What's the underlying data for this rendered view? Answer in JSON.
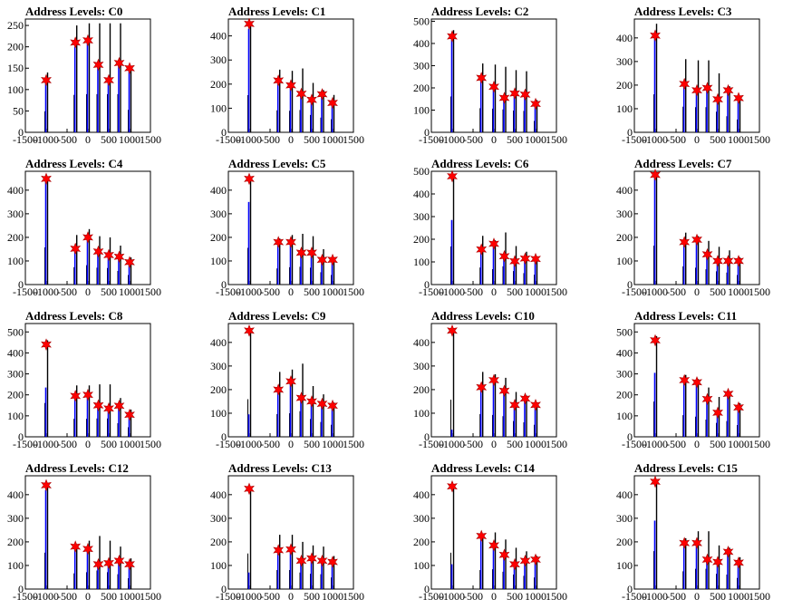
{
  "chart_data": [
    {
      "type": "histogram",
      "title": "Address Levels: C0",
      "xlim": [
        -1500,
        1500
      ],
      "ylim": [
        0,
        265
      ],
      "xticks": [
        -1500,
        -1000,
        -500,
        0,
        500,
        1000,
        1500
      ],
      "yticks": [
        0,
        50,
        100,
        150,
        200,
        250
      ],
      "x": [
        -1000,
        -300,
        0,
        250,
        500,
        750,
        1000
      ],
      "black_values": [
        140,
        250,
        255,
        255,
        255,
        255,
        150
      ],
      "blue_values": [
        120,
        200,
        210,
        150,
        120,
        160,
        145
      ],
      "markers": [
        122,
        210,
        215,
        158,
        122,
        162,
        150
      ]
    },
    {
      "type": "histogram",
      "title": "Address Levels: C1",
      "xlim": [
        -1500,
        1500
      ],
      "ylim": [
        0,
        470
      ],
      "xticks": [
        -1500,
        -1000,
        -500,
        0,
        500,
        1000,
        1500
      ],
      "yticks": [
        0,
        100,
        200,
        300,
        400
      ],
      "x": [
        -1000,
        -300,
        0,
        250,
        500,
        750,
        1000
      ],
      "black_values": [
        440,
        260,
        255,
        265,
        205,
        175,
        155
      ],
      "blue_values": [
        430,
        200,
        185,
        150,
        130,
        150,
        115
      ],
      "markers": [
        450,
        215,
        195,
        160,
        135,
        158,
        122
      ]
    },
    {
      "type": "histogram",
      "title": "Address Levels: C2",
      "xlim": [
        -1500,
        1500
      ],
      "ylim": [
        0,
        510
      ],
      "xticks": [
        -1500,
        -1000,
        -500,
        0,
        500,
        1000,
        1500
      ],
      "yticks": [
        0,
        100,
        200,
        300,
        400,
        500
      ],
      "x": [
        -1000,
        -300,
        0,
        250,
        500,
        750,
        1000
      ],
      "black_values": [
        460,
        310,
        305,
        295,
        280,
        275,
        145
      ],
      "blue_values": [
        420,
        240,
        195,
        150,
        165,
        160,
        115
      ],
      "markers": [
        432,
        245,
        205,
        155,
        175,
        170,
        128
      ]
    },
    {
      "type": "histogram",
      "title": "Address Levels: C3",
      "xlim": [
        -1500,
        1500
      ],
      "ylim": [
        0,
        480
      ],
      "xticks": [
        -1500,
        -1000,
        -500,
        0,
        500,
        1000,
        1500
      ],
      "yticks": [
        0,
        100,
        200,
        300,
        400
      ],
      "x": [
        -1000,
        -300,
        0,
        250,
        500,
        750,
        1000
      ],
      "black_values": [
        460,
        310,
        305,
        305,
        250,
        195,
        155
      ],
      "blue_values": [
        400,
        200,
        170,
        180,
        135,
        170,
        140
      ],
      "markers": [
        410,
        205,
        178,
        188,
        140,
        178,
        145
      ]
    },
    {
      "type": "histogram",
      "title": "Address Levels: C4",
      "xlim": [
        -1500,
        1500
      ],
      "ylim": [
        0,
        480
      ],
      "xticks": [
        -1500,
        -1000,
        -500,
        0,
        500,
        1000,
        1500
      ],
      "yticks": [
        0,
        100,
        200,
        300,
        400
      ],
      "x": [
        -1000,
        -300,
        0,
        250,
        500,
        750,
        1000
      ],
      "black_values": [
        450,
        210,
        235,
        205,
        200,
        165,
        115
      ],
      "blue_values": [
        440,
        150,
        195,
        135,
        120,
        115,
        90
      ],
      "markers": [
        448,
        152,
        200,
        140,
        125,
        118,
        95
      ]
    },
    {
      "type": "histogram",
      "title": "Address Levels: C5",
      "xlim": [
        -1500,
        1500
      ],
      "ylim": [
        0,
        480
      ],
      "xticks": [
        -1500,
        -1000,
        -500,
        0,
        500,
        1000,
        1500
      ],
      "yticks": [
        0,
        100,
        200,
        300,
        400
      ],
      "x": [
        -1000,
        -300,
        0,
        250,
        500,
        750,
        1000
      ],
      "black_values": [
        445,
        195,
        210,
        215,
        205,
        150,
        115
      ],
      "blue_values": [
        350,
        175,
        175,
        130,
        130,
        105,
        100
      ],
      "markers": [
        448,
        180,
        180,
        135,
        135,
        105,
        105
      ]
    },
    {
      "type": "histogram",
      "title": "Address Levels: C6",
      "xlim": [
        -1500,
        1500
      ],
      "ylim": [
        0,
        500
      ],
      "xticks": [
        -1500,
        -1000,
        -500,
        0,
        500,
        1000,
        1500
      ],
      "yticks": [
        0,
        100,
        200,
        300,
        400,
        500
      ],
      "x": [
        -1000,
        -300,
        0,
        250,
        500,
        750,
        1000
      ],
      "black_values": [
        480,
        215,
        195,
        230,
        170,
        145,
        125
      ],
      "blue_values": [
        285,
        150,
        175,
        125,
        100,
        110,
        110
      ],
      "markers": [
        478,
        155,
        180,
        125,
        103,
        115,
        113
      ]
    },
    {
      "type": "histogram",
      "title": "Address Levels: C7",
      "xlim": [
        -1500,
        1500
      ],
      "ylim": [
        0,
        480
      ],
      "xticks": [
        -1500,
        -1000,
        -500,
        0,
        500,
        1000,
        1500
      ],
      "yticks": [
        0,
        100,
        200,
        300,
        400
      ],
      "x": [
        -1000,
        -300,
        0,
        250,
        500,
        750,
        1000
      ],
      "black_values": [
        470,
        220,
        205,
        185,
        160,
        145,
        115
      ],
      "blue_values": [
        455,
        180,
        185,
        125,
        100,
        100,
        100
      ],
      "markers": [
        465,
        180,
        190,
        128,
        100,
        100,
        100
      ]
    },
    {
      "type": "histogram",
      "title": "Address Levels: C8",
      "xlim": [
        -1500,
        1500
      ],
      "ylim": [
        0,
        540
      ],
      "xticks": [
        -1500,
        -1000,
        -500,
        0,
        500,
        1000,
        1500
      ],
      "yticks": [
        0,
        100,
        200,
        300,
        400,
        500
      ],
      "x": [
        -1000,
        -300,
        0,
        250,
        500,
        750,
        1000
      ],
      "black_values": [
        460,
        245,
        245,
        250,
        250,
        185,
        130
      ],
      "blue_values": [
        235,
        190,
        195,
        150,
        130,
        145,
        105
      ],
      "markers": [
        440,
        195,
        200,
        150,
        135,
        148,
        105
      ]
    },
    {
      "type": "histogram",
      "title": "Address Levels: C9",
      "xlim": [
        -1500,
        1500
      ],
      "ylim": [
        0,
        480
      ],
      "xticks": [
        -1500,
        -1000,
        -500,
        0,
        500,
        1000,
        1500
      ],
      "yticks": [
        0,
        100,
        200,
        300,
        400
      ],
      "x": [
        -1000,
        -300,
        0,
        250,
        500,
        750,
        1000
      ],
      "black_values": [
        455,
        275,
        285,
        310,
        215,
        180,
        145
      ],
      "blue_values": [
        95,
        195,
        230,
        160,
        150,
        135,
        125
      ],
      "markers": [
        450,
        200,
        235,
        165,
        150,
        140,
        132
      ]
    },
    {
      "type": "histogram",
      "title": "Address Levels: C10",
      "xlim": [
        -1500,
        1500
      ],
      "ylim": [
        0,
        480
      ],
      "xticks": [
        -1500,
        -1000,
        -500,
        0,
        500,
        1000,
        1500
      ],
      "yticks": [
        0,
        100,
        200,
        300,
        400
      ],
      "x": [
        -1000,
        -300,
        0,
        250,
        500,
        750,
        1000
      ],
      "black_values": [
        450,
        275,
        265,
        250,
        190,
        175,
        145
      ],
      "blue_values": [
        30,
        205,
        235,
        190,
        130,
        155,
        130
      ],
      "markers": [
        450,
        210,
        240,
        195,
        135,
        162,
        135
      ]
    },
    {
      "type": "histogram",
      "title": "Address Levels: C11",
      "xlim": [
        -1500,
        1500
      ],
      "ylim": [
        0,
        540
      ],
      "xticks": [
        -1500,
        -1000,
        -500,
        0,
        500,
        1000,
        1500
      ],
      "yticks": [
        0,
        100,
        200,
        300,
        400,
        500
      ],
      "x": [
        -1000,
        -300,
        0,
        250,
        500,
        750,
        1000
      ],
      "black_values": [
        480,
        295,
        275,
        235,
        190,
        215,
        160
      ],
      "blue_values": [
        305,
        265,
        250,
        175,
        110,
        200,
        135
      ],
      "markers": [
        460,
        270,
        260,
        180,
        115,
        205,
        140
      ]
    },
    {
      "type": "histogram",
      "title": "Address Levels: C12",
      "xlim": [
        -1500,
        1500
      ],
      "ylim": [
        0,
        480
      ],
      "xticks": [
        -1500,
        -1000,
        -500,
        0,
        500,
        1000,
        1500
      ],
      "yticks": [
        0,
        100,
        200,
        300,
        400
      ],
      "x": [
        -1000,
        -300,
        0,
        250,
        500,
        750,
        1000
      ],
      "black_values": [
        440,
        190,
        205,
        225,
        205,
        180,
        130
      ],
      "blue_values": [
        420,
        180,
        160,
        100,
        105,
        115,
        100
      ],
      "markers": [
        440,
        180,
        170,
        105,
        110,
        120,
        105
      ]
    },
    {
      "type": "histogram",
      "title": "Address Levels: C13",
      "xlim": [
        -1500,
        1500
      ],
      "ylim": [
        0,
        480
      ],
      "xticks": [
        -1500,
        -1000,
        -500,
        0,
        500,
        1000,
        1500
      ],
      "yticks": [
        0,
        100,
        200,
        300,
        400
      ],
      "x": [
        -1000,
        -300,
        0,
        250,
        500,
        750,
        1000
      ],
      "black_values": [
        430,
        230,
        230,
        200,
        185,
        180,
        140
      ],
      "blue_values": [
        70,
        160,
        165,
        120,
        130,
        120,
        110
      ],
      "markers": [
        425,
        165,
        168,
        120,
        130,
        120,
        115
      ]
    },
    {
      "type": "histogram",
      "title": "Address Levels: C14",
      "xlim": [
        -1500,
        1500
      ],
      "ylim": [
        0,
        480
      ],
      "xticks": [
        -1500,
        -1000,
        -500,
        0,
        500,
        1000,
        1500
      ],
      "yticks": [
        0,
        100,
        200,
        300,
        400
      ],
      "x": [
        -1000,
        -300,
        0,
        250,
        500,
        750,
        1000
      ],
      "black_values": [
        440,
        230,
        240,
        210,
        175,
        160,
        140
      ],
      "blue_values": [
        105,
        220,
        180,
        140,
        100,
        120,
        120
      ],
      "markers": [
        435,
        225,
        185,
        145,
        105,
        120,
        125
      ]
    },
    {
      "type": "histogram",
      "title": "Address Levels: C15",
      "xlim": [
        -1500,
        1500
      ],
      "ylim": [
        0,
        480
      ],
      "xticks": [
        -1500,
        -1000,
        -500,
        0,
        500,
        1000,
        1500
      ],
      "yticks": [
        0,
        100,
        200,
        300,
        400
      ],
      "x": [
        -1000,
        -300,
        0,
        250,
        500,
        750,
        1000
      ],
      "black_values": [
        460,
        215,
        245,
        245,
        185,
        175,
        135
      ],
      "blue_values": [
        290,
        190,
        190,
        120,
        110,
        150,
        105
      ],
      "markers": [
        455,
        195,
        195,
        125,
        115,
        158,
        112
      ]
    }
  ],
  "colors": {
    "primary_hist": "#000000",
    "secondary_hist": "#0000ff",
    "marker_fill": "#ff0000",
    "marker_stroke": "#aa0000",
    "axis": "#000000"
  }
}
